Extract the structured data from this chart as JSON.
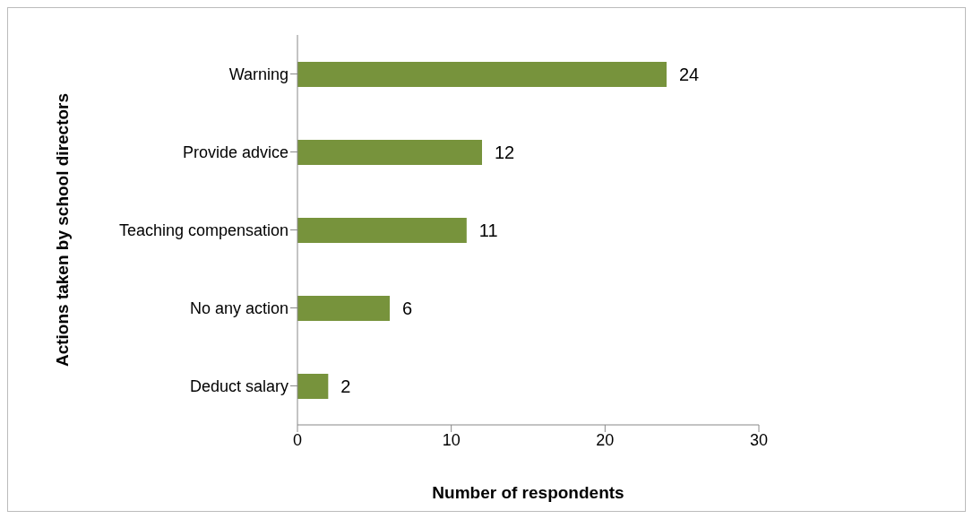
{
  "chart_data": {
    "type": "bar",
    "orientation": "horizontal",
    "xlabel": "Number of respondents",
    "ylabel": "Actions taken by school directors",
    "categories": [
      "Warning",
      "Provide advice",
      "Teaching compensation",
      "No any action",
      "Deduct salary"
    ],
    "values": [
      24,
      12,
      11,
      6,
      2
    ],
    "color": "#77933c",
    "xlim": [
      0,
      30
    ],
    "xticks": [
      0,
      10,
      20,
      30
    ],
    "grid": false,
    "data_labels": true
  }
}
